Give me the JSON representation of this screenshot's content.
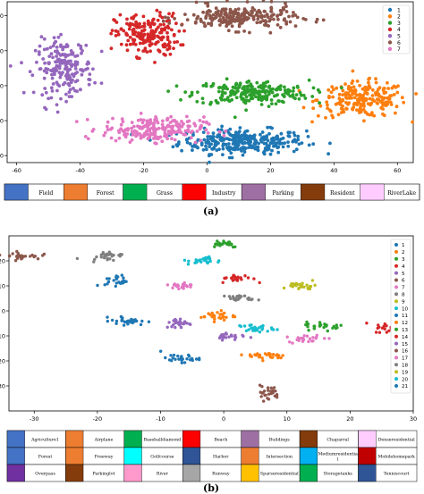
{
  "chart_data": [
    {
      "type": "scatter",
      "panel_label": "(a)",
      "xlim": [
        -63,
        65
      ],
      "ylim": [
        -44,
        48
      ],
      "xticks": [
        -60,
        -40,
        -20,
        0,
        20,
        40,
        60
      ],
      "yticks": [
        -40,
        -20,
        0,
        20,
        40
      ],
      "grid": false,
      "legend_placement": "top-right",
      "series": [
        {
          "name": "1",
          "color": "#1f77b4",
          "cluster": {
            "cx": 11,
            "cy": -32,
            "sx": 10,
            "sy": 3.5,
            "n": 300
          }
        },
        {
          "name": "2",
          "color": "#ff7f0e",
          "cluster": {
            "cx": 49,
            "cy": -8,
            "sx": 7,
            "sy": 5,
            "n": 220
          }
        },
        {
          "name": "3",
          "color": "#2ca02c",
          "cluster": {
            "cx": 14,
            "cy": -4,
            "sx": 9,
            "sy": 3.5,
            "n": 230
          }
        },
        {
          "name": "4",
          "color": "#d62728",
          "cluster": {
            "cx": -19,
            "cy": 29,
            "sx": 5,
            "sy": 6,
            "n": 200
          }
        },
        {
          "name": "5",
          "color": "#9467bd",
          "cluster": {
            "cx": -45,
            "cy": 10,
            "sx": 4.5,
            "sy": 8,
            "n": 200
          }
        },
        {
          "name": "6",
          "color": "#8c564b",
          "cluster": {
            "cx": 10,
            "cy": 39,
            "sx": 9,
            "sy": 3.5,
            "n": 230
          }
        },
        {
          "name": "7",
          "color": "#e377c2",
          "cluster": {
            "cx": -17,
            "cy": -25,
            "sx": 8,
            "sy": 3.5,
            "n": 220
          }
        }
      ],
      "color_legend": [
        "Field",
        "Forest",
        "Grass",
        "Industry",
        "Parking",
        "Resident",
        "RiverLake"
      ]
    },
    {
      "type": "scatter",
      "panel_label": "(b)",
      "xlim": [
        -34,
        30
      ],
      "ylim": [
        -40,
        30
      ],
      "xticks": [
        -30,
        -20,
        -10,
        0,
        10,
        20,
        30
      ],
      "yticks": [
        -30,
        -20,
        -10,
        0,
        10,
        20
      ],
      "grid": false,
      "legend_placement": "right",
      "series": [
        {
          "name": "1",
          "color": "#1f77b4",
          "clusters": [
            {
              "cx": -15,
              "cy": -4,
              "sx": 1.4,
              "sy": 0.8,
              "n": 30
            },
            {
              "cx": -17,
              "cy": 12,
              "sx": 0.9,
              "sy": 1.2,
              "n": 25
            }
          ]
        },
        {
          "name": "2",
          "color": "#ff7f0e",
          "clusters": [
            {
              "cx": -1,
              "cy": -2,
              "sx": 1.4,
              "sy": 1,
              "n": 28
            },
            {
              "cx": 7,
              "cy": -18,
              "sx": 1.6,
              "sy": 0.8,
              "n": 28
            }
          ]
        },
        {
          "name": "3",
          "color": "#2ca02c",
          "clusters": [
            {
              "cx": 0,
              "cy": 27,
              "sx": 1.3,
              "sy": 0.8,
              "n": 26
            },
            {
              "cx": 16,
              "cy": -6,
              "sx": 1.5,
              "sy": 0.8,
              "n": 26
            }
          ]
        },
        {
          "name": "4",
          "color": "#d62728",
          "clusters": [
            {
              "cx": 2,
              "cy": 13,
              "sx": 1.3,
              "sy": 0.8,
              "n": 26
            },
            {
              "cx": 26,
              "cy": -7,
              "sx": 1,
              "sy": 1,
              "n": 20
            }
          ]
        },
        {
          "name": "5",
          "color": "#9467bd",
          "clusters": [
            {
              "cx": -7,
              "cy": -5,
              "sx": 1.1,
              "sy": 1,
              "n": 26
            },
            {
              "cx": 1,
              "cy": -10,
              "sx": 1.2,
              "sy": 0.8,
              "n": 24
            }
          ]
        },
        {
          "name": "6",
          "color": "#8c564b",
          "clusters": [
            {
              "cx": -32,
              "cy": 22,
              "sx": 1.5,
              "sy": 0.7,
              "n": 28
            },
            {
              "cx": 7,
              "cy": -33,
              "sx": 0.9,
              "sy": 1.5,
              "n": 26
            }
          ]
        },
        {
          "name": "7",
          "color": "#e377c2",
          "clusters": [
            {
              "cx": -7,
              "cy": 10,
              "sx": 1.3,
              "sy": 0.8,
              "n": 24
            },
            {
              "cx": 13,
              "cy": -11,
              "sx": 1.4,
              "sy": 0.8,
              "n": 24
            }
          ]
        },
        {
          "name": "8",
          "color": "#7f7f7f",
          "clusters": [
            {
              "cx": -19,
              "cy": 22,
              "sx": 1.5,
              "sy": 0.8,
              "n": 26
            },
            {
              "cx": 3,
              "cy": 5,
              "sx": 1.2,
              "sy": 0.6,
              "n": 22
            }
          ]
        },
        {
          "name": "9",
          "color": "#bcbd22",
          "clusters": [
            {
              "cx": 12,
              "cy": 10,
              "sx": 1.3,
              "sy": 0.8,
              "n": 26
            }
          ]
        },
        {
          "name": "10",
          "color": "#17becf",
          "clusters": [
            {
              "cx": -3,
              "cy": 20,
              "sx": 1.3,
              "sy": 0.8,
              "n": 26
            },
            {
              "cx": 5,
              "cy": -7,
              "sx": 1.4,
              "sy": 0.8,
              "n": 26
            }
          ]
        },
        {
          "name": "11",
          "color": "#1f77b4",
          "clusters": [
            {
              "cx": -7,
              "cy": -19,
              "sx": 1.5,
              "sy": 0.8,
              "n": 26
            }
          ]
        },
        {
          "name": "12",
          "color": "#ff7f0e",
          "clusters": []
        },
        {
          "name": "13",
          "color": "#2ca02c",
          "clusters": []
        },
        {
          "name": "14",
          "color": "#d62728",
          "clusters": []
        },
        {
          "name": "15",
          "color": "#9467bd",
          "clusters": []
        },
        {
          "name": "16",
          "color": "#8c564b",
          "clusters": []
        },
        {
          "name": "17",
          "color": "#e377c2",
          "clusters": []
        },
        {
          "name": "18",
          "color": "#7f7f7f",
          "clusters": []
        },
        {
          "name": "19",
          "color": "#bcbd22",
          "clusters": []
        },
        {
          "name": "20",
          "color": "#17becf",
          "clusters": []
        },
        {
          "name": "21",
          "color": "#1f77b4",
          "clusters": []
        }
      ],
      "color_legend": [
        {
          "label": "Agriculture1",
          "color": "#4472c4"
        },
        {
          "label": "Airplane",
          "color": "#ed7d31"
        },
        {
          "label": "Baseballdiamond",
          "color": "#00b050"
        },
        {
          "label": "Beach",
          "color": "#ff0000"
        },
        {
          "label": "Buildings",
          "color": "#9e6fa3"
        },
        {
          "label": "Chaparral",
          "color": "#843c0c"
        },
        {
          "label": "Denseresidential",
          "color": "#ffccff"
        },
        {
          "label": "Forest",
          "color": "#4472c4"
        },
        {
          "label": "Freeway",
          "color": "#ed7d31"
        },
        {
          "label": "Golfcourse",
          "color": "#00ffff"
        },
        {
          "label": "Harbor",
          "color": "#2f5597"
        },
        {
          "label": "Intersection",
          "color": "#ed7d31"
        },
        {
          "label": "Mediumresidentia l",
          "color": "#00b0f0"
        },
        {
          "label": "Mobilehomepark",
          "color": "#c00000"
        },
        {
          "label": "Overpass",
          "color": "#7030a0"
        },
        {
          "label": "Parkinglot",
          "color": "#843c0c"
        },
        {
          "label": "River",
          "color": "#ff99cc"
        },
        {
          "label": "Runway",
          "color": "#a6a6a6"
        },
        {
          "label": "Sparseresidential",
          "color": "#ffc000"
        },
        {
          "label": "Storagetanks",
          "color": "#00b050"
        },
        {
          "label": "Tenniscourt",
          "color": "#2f5597"
        }
      ]
    }
  ],
  "legend_a_colors": [
    "#4472c4",
    "#ed7d31",
    "#00b050",
    "#ff0000",
    "#9e6fa3",
    "#843c0c",
    "#ffccff"
  ]
}
